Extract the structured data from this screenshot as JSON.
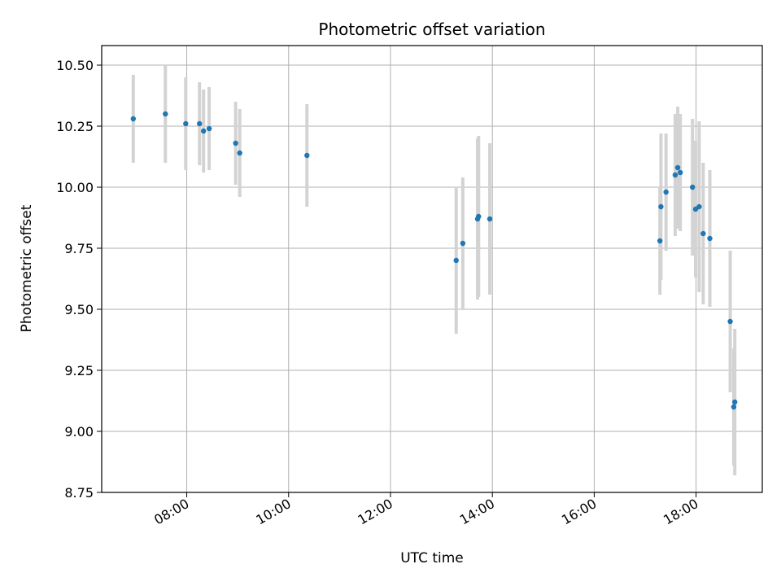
{
  "chart_data": {
    "type": "scatter",
    "title": "Photometric offset variation",
    "xlabel": "UTC time",
    "ylabel": "Photometric offset",
    "x_unit": "hours UTC",
    "xlim": [
      6.33,
      19.3
    ],
    "ylim": [
      8.75,
      10.58
    ],
    "x_ticks": [
      {
        "value": 8,
        "label": "08:00"
      },
      {
        "value": 10,
        "label": "10:00"
      },
      {
        "value": 12,
        "label": "12:00"
      },
      {
        "value": 14,
        "label": "14:00"
      },
      {
        "value": 16,
        "label": "16:00"
      },
      {
        "value": 18,
        "label": "18:00"
      }
    ],
    "y_ticks": [
      {
        "value": 8.75,
        "label": "8.75"
      },
      {
        "value": 9.0,
        "label": "9.00"
      },
      {
        "value": 9.25,
        "label": "9.25"
      },
      {
        "value": 9.5,
        "label": "9.50"
      },
      {
        "value": 9.75,
        "label": "9.75"
      },
      {
        "value": 10.0,
        "label": "10.00"
      },
      {
        "value": 10.25,
        "label": "10.25"
      },
      {
        "value": 10.5,
        "label": "10.50"
      }
    ],
    "grid": true,
    "point_color": "#1f77b4",
    "errorbar_color": "#d3d3d3",
    "points": [
      {
        "x": 6.95,
        "y": 10.28,
        "err": 0.18
      },
      {
        "x": 7.58,
        "y": 10.3,
        "err": 0.2
      },
      {
        "x": 7.98,
        "y": 10.26,
        "err": 0.19
      },
      {
        "x": 8.25,
        "y": 10.26,
        "err": 0.17
      },
      {
        "x": 8.33,
        "y": 10.23,
        "err": 0.17
      },
      {
        "x": 8.44,
        "y": 10.24,
        "err": 0.17
      },
      {
        "x": 8.96,
        "y": 10.18,
        "err": 0.17
      },
      {
        "x": 9.04,
        "y": 10.14,
        "err": 0.18
      },
      {
        "x": 10.36,
        "y": 10.13,
        "err": 0.21
      },
      {
        "x": 13.29,
        "y": 9.7,
        "err": 0.3
      },
      {
        "x": 13.42,
        "y": 9.77,
        "err": 0.27
      },
      {
        "x": 13.71,
        "y": 9.87,
        "err": 0.33
      },
      {
        "x": 13.73,
        "y": 9.88,
        "err": 0.33
      },
      {
        "x": 13.95,
        "y": 9.87,
        "err": 0.31
      },
      {
        "x": 17.29,
        "y": 9.78,
        "err": 0.22
      },
      {
        "x": 17.31,
        "y": 9.92,
        "err": 0.3
      },
      {
        "x": 17.41,
        "y": 9.98,
        "err": 0.24
      },
      {
        "x": 17.59,
        "y": 10.05,
        "err": 0.25
      },
      {
        "x": 17.64,
        "y": 10.08,
        "err": 0.25
      },
      {
        "x": 17.69,
        "y": 10.06,
        "err": 0.24
      },
      {
        "x": 17.93,
        "y": 10.0,
        "err": 0.28
      },
      {
        "x": 17.99,
        "y": 9.91,
        "err": 0.28
      },
      {
        "x": 18.06,
        "y": 9.92,
        "err": 0.35
      },
      {
        "x": 18.14,
        "y": 9.81,
        "err": 0.29
      },
      {
        "x": 18.27,
        "y": 9.79,
        "err": 0.28
      },
      {
        "x": 18.67,
        "y": 9.45,
        "err": 0.29
      },
      {
        "x": 18.74,
        "y": 9.1,
        "err": 0.24
      },
      {
        "x": 18.76,
        "y": 9.12,
        "err": 0.3
      }
    ]
  }
}
